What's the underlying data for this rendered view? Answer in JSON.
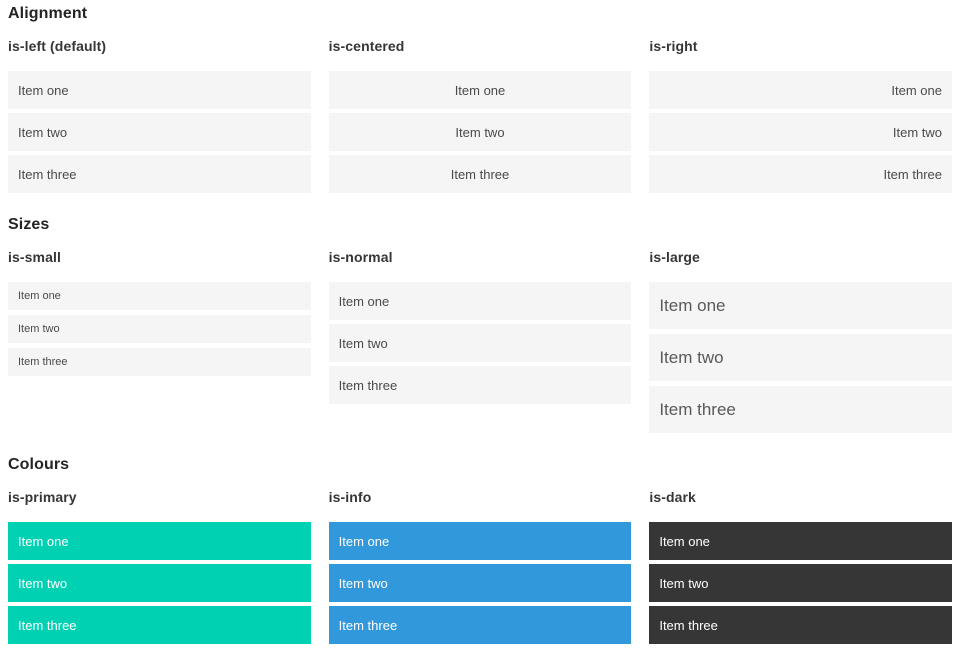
{
  "sections": [
    {
      "title": "Alignment",
      "columns": [
        {
          "label": "is-left (default)",
          "variant": "left",
          "items": [
            "Item one",
            "Item two",
            "Item three"
          ]
        },
        {
          "label": "is-centered",
          "variant": "centered",
          "items": [
            "Item one",
            "Item two",
            "Item three"
          ]
        },
        {
          "label": "is-right",
          "variant": "right",
          "items": [
            "Item one",
            "Item two",
            "Item three"
          ]
        }
      ]
    },
    {
      "title": "Sizes",
      "columns": [
        {
          "label": "is-small",
          "variant": "small",
          "items": [
            "Item one",
            "Item two",
            "Item three"
          ]
        },
        {
          "label": "is-normal",
          "variant": "normal",
          "items": [
            "Item one",
            "Item two",
            "Item three"
          ]
        },
        {
          "label": "is-large",
          "variant": "large",
          "items": [
            "Item one",
            "Item two",
            "Item three"
          ]
        }
      ]
    },
    {
      "title": "Colours",
      "columns": [
        {
          "label": "is-primary",
          "variant": "primary",
          "items": [
            "Item one",
            "Item two",
            "Item three"
          ]
        },
        {
          "label": "is-info",
          "variant": "info",
          "items": [
            "Item one",
            "Item two",
            "Item three"
          ]
        },
        {
          "label": "is-dark",
          "variant": "dark",
          "items": [
            "Item one",
            "Item two",
            "Item three"
          ]
        }
      ]
    }
  ],
  "colors": {
    "primary": "#00d1b2",
    "info": "#3298dc",
    "dark": "#363636",
    "item_bg": "#f5f5f5",
    "item_text": "#4a4a4a"
  }
}
